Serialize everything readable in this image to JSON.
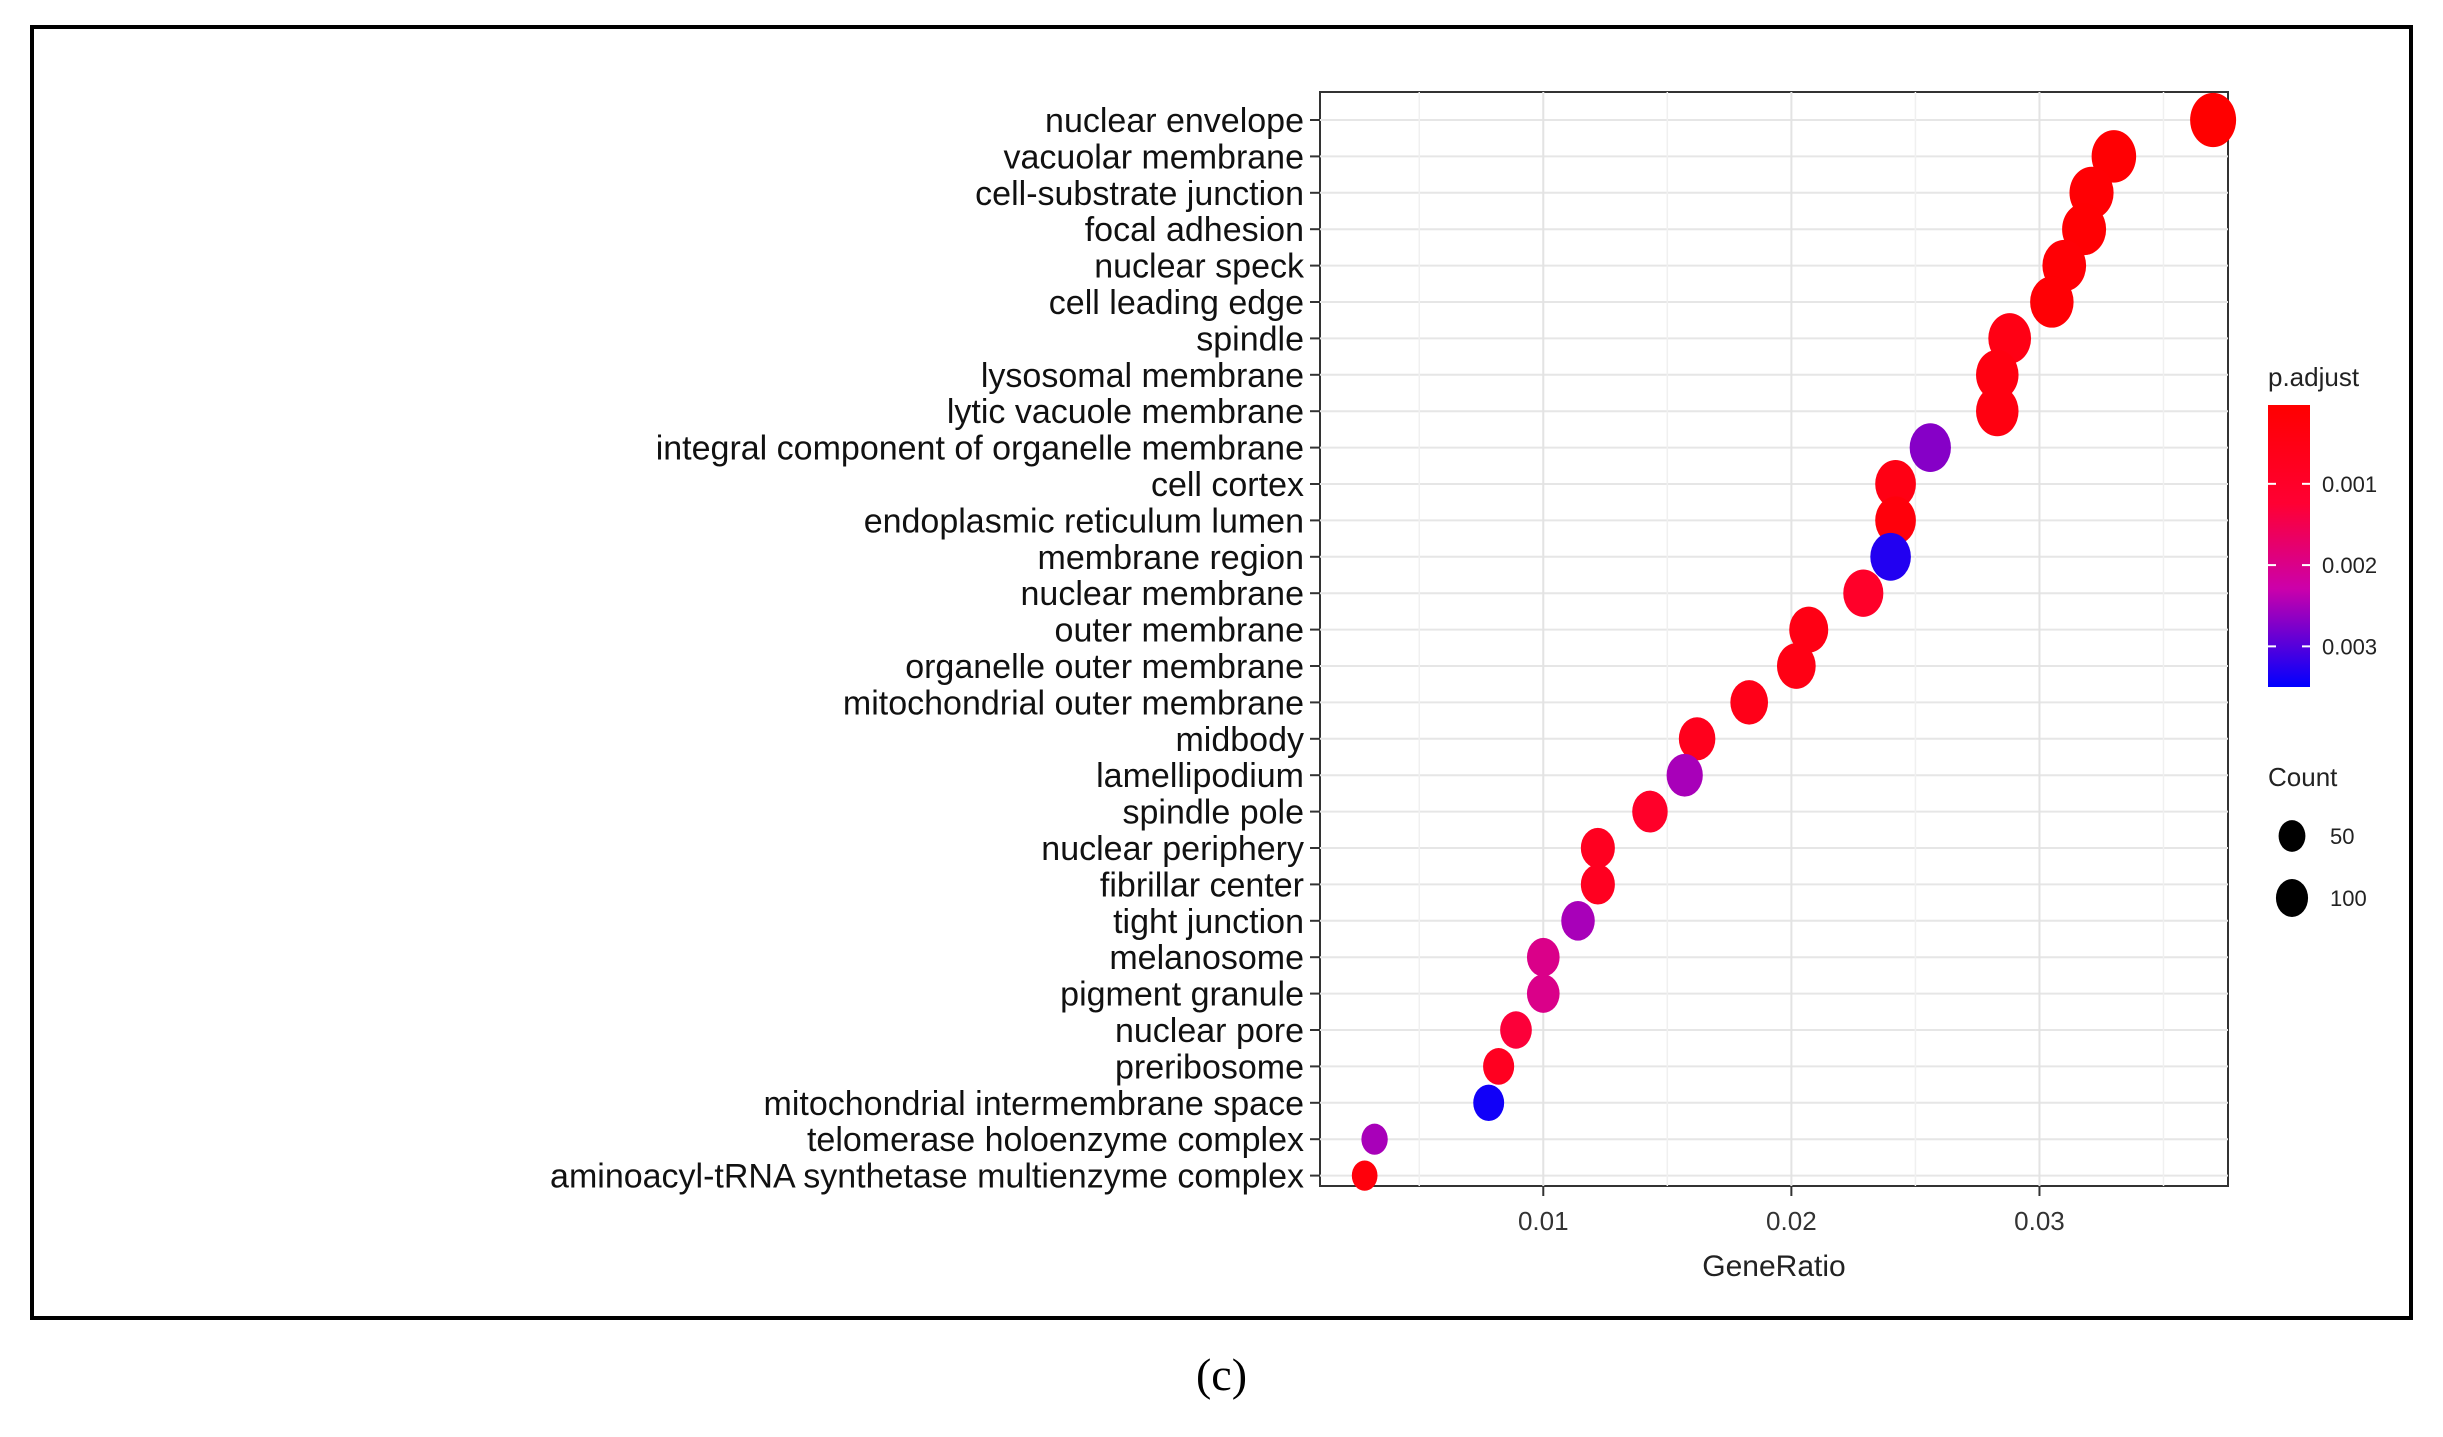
{
  "chart_data": {
    "type": "scatter",
    "title": "",
    "xlabel": "GeneRatio",
    "ylabel": "",
    "x_ticks": [
      0.01,
      0.02,
      0.03
    ],
    "x_tick_labels": [
      "0.01",
      "0.02",
      "0.03"
    ],
    "xlim": [
      0.001,
      0.0376
    ],
    "grid": true,
    "legend_position": "right",
    "color_legend": {
      "title": "p.adjust",
      "ticks": [
        0.001,
        0.002,
        0.003
      ],
      "tick_labels": [
        "0.001",
        "0.002",
        "0.003"
      ],
      "range": [
        3e-05,
        0.0035
      ],
      "low_color": "#ff0000",
      "high_color": "#0000ff"
    },
    "size_legend": {
      "title": "Count",
      "values": [
        50,
        100
      ],
      "labels": [
        "50",
        "100"
      ]
    },
    "points": [
      {
        "term": "nuclear envelope",
        "gene_ratio": 0.037,
        "p_adjust": 3e-05,
        "count": 146
      },
      {
        "term": "vacuolar membrane",
        "gene_ratio": 0.033,
        "p_adjust": 0.0001,
        "count": 131
      },
      {
        "term": "cell-substrate junction",
        "gene_ratio": 0.0321,
        "p_adjust": 0.00012,
        "count": 127
      },
      {
        "term": "focal adhesion",
        "gene_ratio": 0.0318,
        "p_adjust": 0.0001,
        "count": 126
      },
      {
        "term": "nuclear speck",
        "gene_ratio": 0.031,
        "p_adjust": 0.00015,
        "count": 123
      },
      {
        "term": "cell leading edge",
        "gene_ratio": 0.0305,
        "p_adjust": 0.00015,
        "count": 121
      },
      {
        "term": "spindle",
        "gene_ratio": 0.0288,
        "p_adjust": 0.0005,
        "count": 114
      },
      {
        "term": "lysosomal membrane",
        "gene_ratio": 0.0283,
        "p_adjust": 0.0004,
        "count": 112
      },
      {
        "term": "lytic vacuole membrane",
        "gene_ratio": 0.0283,
        "p_adjust": 0.0004,
        "count": 112
      },
      {
        "term": "integral component of organelle membrane",
        "gene_ratio": 0.0256,
        "p_adjust": 0.0027,
        "count": 101
      },
      {
        "term": "cell cortex",
        "gene_ratio": 0.0242,
        "p_adjust": 0.0005,
        "count": 96
      },
      {
        "term": "endoplasmic reticulum lumen",
        "gene_ratio": 0.0242,
        "p_adjust": 0.0003,
        "count": 96
      },
      {
        "term": "membrane region",
        "gene_ratio": 0.024,
        "p_adjust": 0.0033,
        "count": 95
      },
      {
        "term": "nuclear membrane",
        "gene_ratio": 0.0229,
        "p_adjust": 0.001,
        "count": 91
      },
      {
        "term": "outer membrane",
        "gene_ratio": 0.0207,
        "p_adjust": 0.0005,
        "count": 82
      },
      {
        "term": "organelle outer membrane",
        "gene_ratio": 0.0202,
        "p_adjust": 0.0005,
        "count": 80
      },
      {
        "term": "mitochondrial outer membrane",
        "gene_ratio": 0.0183,
        "p_adjust": 0.0006,
        "count": 72
      },
      {
        "term": "midbody",
        "gene_ratio": 0.0162,
        "p_adjust": 0.0007,
        "count": 64
      },
      {
        "term": "lamellipodium",
        "gene_ratio": 0.0157,
        "p_adjust": 0.0025,
        "count": 62
      },
      {
        "term": "spindle pole",
        "gene_ratio": 0.0143,
        "p_adjust": 0.001,
        "count": 57
      },
      {
        "term": "nuclear periphery",
        "gene_ratio": 0.0122,
        "p_adjust": 0.0008,
        "count": 48
      },
      {
        "term": "fibrillar center",
        "gene_ratio": 0.0122,
        "p_adjust": 0.0008,
        "count": 48
      },
      {
        "term": "tight junction",
        "gene_ratio": 0.0114,
        "p_adjust": 0.0025,
        "count": 45
      },
      {
        "term": "melanosome",
        "gene_ratio": 0.01,
        "p_adjust": 0.002,
        "count": 40
      },
      {
        "term": "pigment granule",
        "gene_ratio": 0.01,
        "p_adjust": 0.002,
        "count": 40
      },
      {
        "term": "nuclear pore",
        "gene_ratio": 0.0089,
        "p_adjust": 0.0013,
        "count": 35
      },
      {
        "term": "preribosome",
        "gene_ratio": 0.0082,
        "p_adjust": 0.0008,
        "count": 32
      },
      {
        "term": "mitochondrial intermembrane space",
        "gene_ratio": 0.0078,
        "p_adjust": 0.0034,
        "count": 31
      },
      {
        "term": "telomerase holoenzyme complex",
        "gene_ratio": 0.0032,
        "p_adjust": 0.0025,
        "count": 13
      },
      {
        "term": "aminoacyl-tRNA synthetase multienzyme complex",
        "gene_ratio": 0.0028,
        "p_adjust": 0.0003,
        "count": 11
      }
    ]
  },
  "panel_label": "(c)"
}
